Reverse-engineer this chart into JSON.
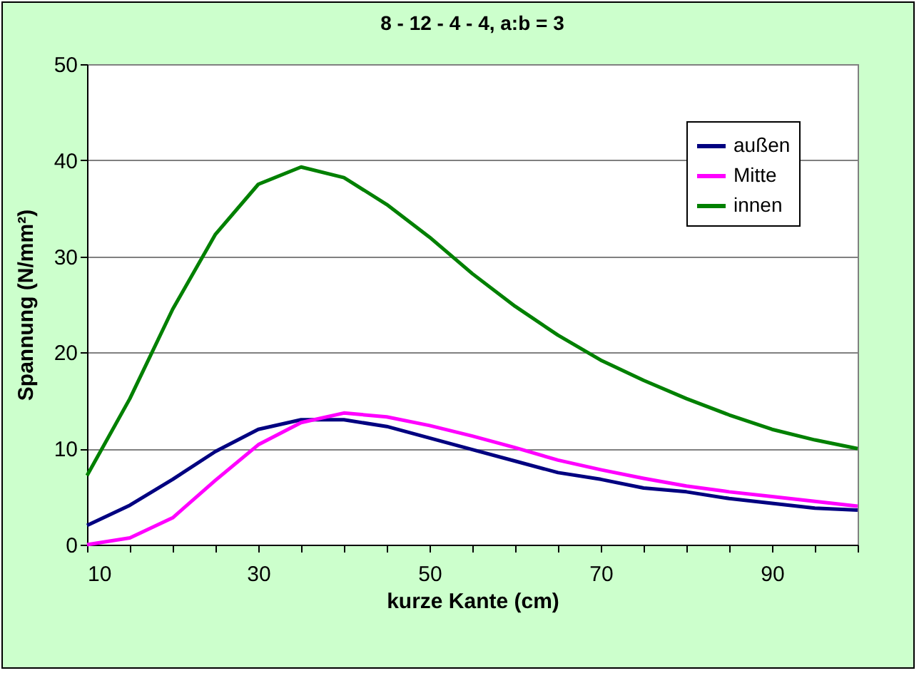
{
  "chart_data": {
    "type": "line",
    "title": "8 - 12 - 4 - 4, a:b = 3",
    "xlabel": "kurze Kante (cm)",
    "ylabel": "Spannung (N/mm²)",
    "x": [
      10,
      15,
      20,
      25,
      30,
      35,
      40,
      45,
      50,
      55,
      60,
      65,
      70,
      75,
      80,
      85,
      90,
      95,
      100
    ],
    "series": [
      {
        "name": "außen",
        "color": "#000080",
        "values": [
          2,
          4.1,
          6.8,
          9.7,
          12,
          13,
          13,
          12.3,
          11.1,
          9.9,
          8.7,
          7.5,
          6.8,
          5.9,
          5.5,
          4.8,
          4.3,
          3.8,
          3.6
        ]
      },
      {
        "name": "Mitte",
        "color": "#ff00ff",
        "values": [
          0,
          0.7,
          2.8,
          6.7,
          10.4,
          12.7,
          13.7,
          13.3,
          12.4,
          11.3,
          10.1,
          8.8,
          7.8,
          6.9,
          6.1,
          5.5,
          5,
          4.5,
          4
        ]
      },
      {
        "name": "innen",
        "color": "#008000",
        "values": [
          7.2,
          15.2,
          24.5,
          32.3,
          37.5,
          39.3,
          38.2,
          35.4,
          32,
          28.2,
          24.8,
          21.8,
          19.2,
          17.1,
          15.2,
          13.5,
          12,
          10.9,
          10
        ]
      }
    ],
    "xlim": [
      10,
      100
    ],
    "xticks": [
      10,
      {
        "value": 15,
        "label": null
      },
      {
        "value": 20,
        "label": null
      },
      {
        "value": 25,
        "label": null
      },
      30,
      {
        "value": 35,
        "label": null
      },
      {
        "value": 40,
        "label": null
      },
      {
        "value": 45,
        "label": null
      },
      50,
      {
        "value": 55,
        "label": null
      },
      {
        "value": 60,
        "label": null
      },
      {
        "value": 65,
        "label": null
      },
      70,
      {
        "value": 75,
        "label": null
      },
      {
        "value": 80,
        "label": null
      },
      {
        "value": 85,
        "label": null
      },
      90,
      {
        "value": 95,
        "label": null
      },
      {
        "value": 100,
        "label": null
      }
    ],
    "ylim": [
      0,
      50
    ],
    "yticks": [
      0,
      10,
      20,
      30,
      40,
      50
    ],
    "grid": "y",
    "legend": "top right",
    "marker": "none",
    "line_style": "solid"
  }
}
